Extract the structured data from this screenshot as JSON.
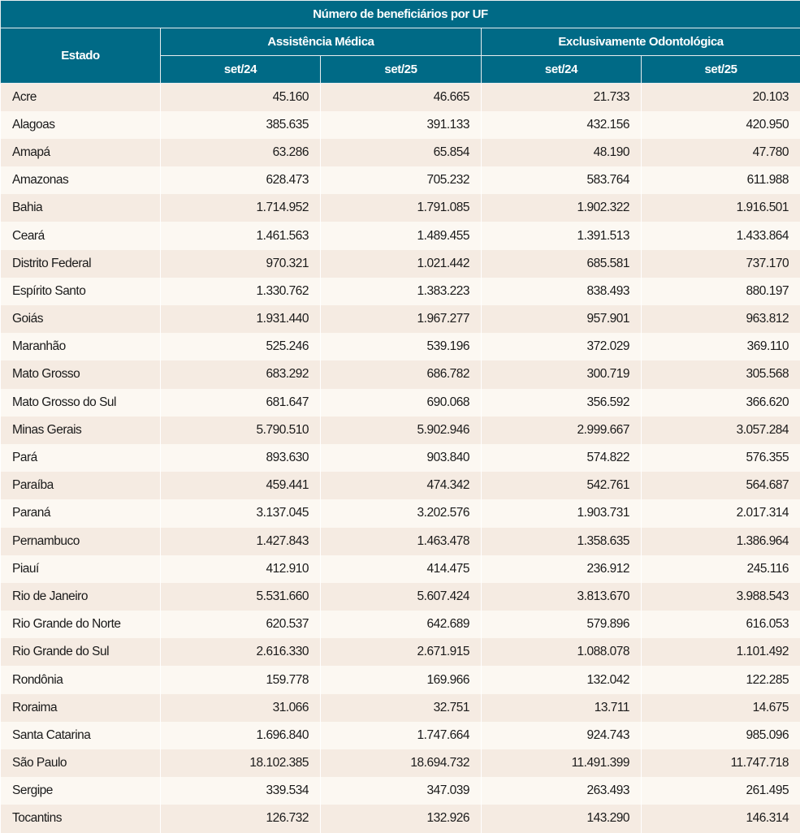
{
  "table": {
    "title": "Número de beneficiários por UF",
    "col_state": "Estado",
    "groups": [
      "Assistência Médica",
      "Exclusivamente Odontológica"
    ],
    "periods": [
      "set/24",
      "set/25",
      "set/24",
      "set/25"
    ],
    "colors": {
      "header_bg": "#006a86",
      "row_odd": "#f5ebe2",
      "row_even": "#fcf8f2"
    },
    "rows": [
      [
        "Acre",
        "45.160",
        "46.665",
        "21.733",
        "20.103"
      ],
      [
        "Alagoas",
        "385.635",
        "391.133",
        "432.156",
        "420.950"
      ],
      [
        "Amapá",
        "63.286",
        "65.854",
        "48.190",
        "47.780"
      ],
      [
        "Amazonas",
        "628.473",
        "705.232",
        "583.764",
        "611.988"
      ],
      [
        "Bahia",
        "1.714.952",
        "1.791.085",
        "1.902.322",
        "1.916.501"
      ],
      [
        "Ceará",
        "1.461.563",
        "1.489.455",
        "1.391.513",
        "1.433.864"
      ],
      [
        "Distrito Federal",
        "970.321",
        "1.021.442",
        "685.581",
        "737.170"
      ],
      [
        "Espírito Santo",
        "1.330.762",
        "1.383.223",
        "838.493",
        "880.197"
      ],
      [
        "Goiás",
        "1.931.440",
        "1.967.277",
        "957.901",
        "963.812"
      ],
      [
        "Maranhão",
        "525.246",
        "539.196",
        "372.029",
        "369.110"
      ],
      [
        "Mato Grosso",
        "683.292",
        "686.782",
        "300.719",
        "305.568"
      ],
      [
        "Mato Grosso do Sul",
        "681.647",
        "690.068",
        "356.592",
        "366.620"
      ],
      [
        "Minas Gerais",
        "5.790.510",
        "5.902.946",
        "2.999.667",
        "3.057.284"
      ],
      [
        "Pará",
        "893.630",
        "903.840",
        "574.822",
        "576.355"
      ],
      [
        "Paraíba",
        "459.441",
        "474.342",
        "542.761",
        "564.687"
      ],
      [
        "Paraná",
        "3.137.045",
        "3.202.576",
        "1.903.731",
        "2.017.314"
      ],
      [
        "Pernambuco",
        "1.427.843",
        "1.463.478",
        "1.358.635",
        "1.386.964"
      ],
      [
        "Piauí",
        "412.910",
        "414.475",
        "236.912",
        "245.116"
      ],
      [
        "Rio de Janeiro",
        "5.531.660",
        "5.607.424",
        "3.813.670",
        "3.988.543"
      ],
      [
        "Rio Grande do Norte",
        "620.537",
        "642.689",
        "579.896",
        "616.053"
      ],
      [
        "Rio Grande do Sul",
        "2.616.330",
        "2.671.915",
        "1.088.078",
        "1.101.492"
      ],
      [
        "Rondônia",
        "159.778",
        "169.966",
        "132.042",
        "122.285"
      ],
      [
        "Roraima",
        "31.066",
        "32.751",
        "13.711",
        "14.675"
      ],
      [
        "Santa Catarina",
        "1.696.840",
        "1.747.664",
        "924.743",
        "985.096"
      ],
      [
        "São Paulo",
        "18.102.385",
        "18.694.732",
        "11.491.399",
        "11.747.718"
      ],
      [
        "Sergipe",
        "339.534",
        "347.039",
        "263.493",
        "261.495"
      ],
      [
        "Tocantins",
        "126.732",
        "132.926",
        "143.290",
        "146.314"
      ]
    ]
  }
}
